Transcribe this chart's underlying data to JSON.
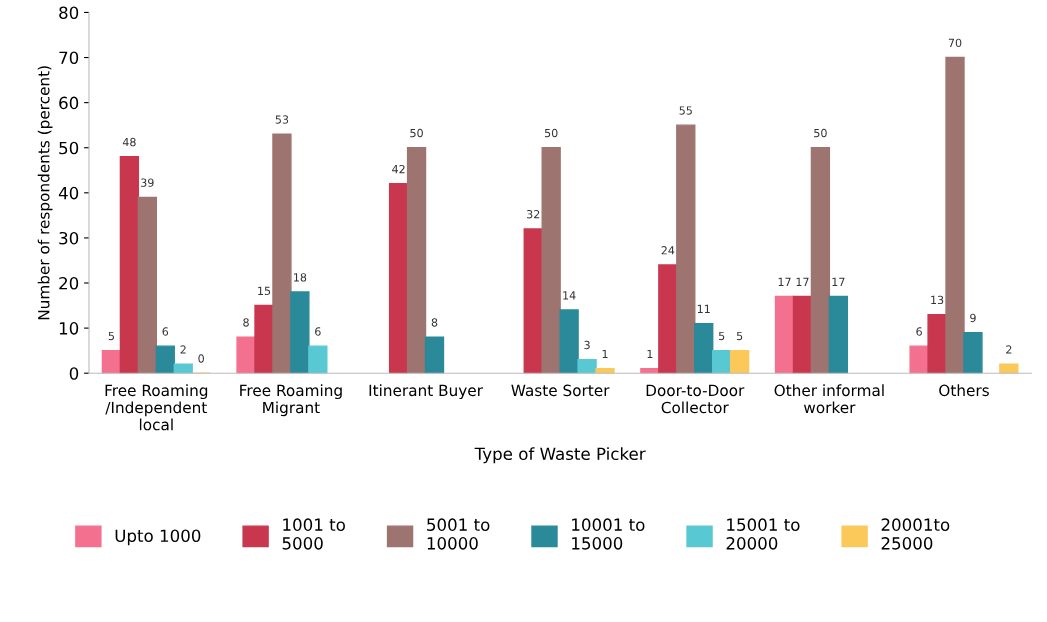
{
  "chart_data": {
    "type": "bar",
    "xlabel": "Type of Waste Picker",
    "ylabel": "Number of respondents (percent)",
    "categories": [
      "Free Roaming\n/Independent\nlocal",
      "Free Roaming\nMigrant",
      "Itinerant Buyer",
      "Waste Sorter",
      "Door-to-Door\nCollector",
      "Other informal\nworker",
      "Others"
    ],
    "series": [
      {
        "name": "Upto 1000",
        "color": "#f4708f",
        "values": [
          5,
          8,
          null,
          null,
          1,
          17,
          6
        ]
      },
      {
        "name": "1001 to\n5000",
        "color": "#c9374f",
        "values": [
          48,
          15,
          42,
          32,
          24,
          17,
          13
        ]
      },
      {
        "name": "5001 to\n10000",
        "color": "#9e7470",
        "values": [
          39,
          53,
          50,
          50,
          55,
          50,
          70
        ]
      },
      {
        "name": "10001 to\n15000",
        "color": "#2a8a99",
        "values": [
          6,
          18,
          8,
          14,
          11,
          17,
          9
        ]
      },
      {
        "name": "15001 to\n20000",
        "color": "#58c8d3",
        "values": [
          2,
          6,
          null,
          3,
          5,
          null,
          null
        ]
      },
      {
        "name": "20001to\n25000",
        "color": "#fbc85a",
        "values": [
          0,
          null,
          null,
          1,
          5,
          null,
          2
        ]
      }
    ],
    "ylim": [
      0,
      80
    ],
    "yticks": [
      0,
      10,
      20,
      30,
      40,
      50,
      60,
      70,
      80
    ],
    "data_labels": true,
    "grid": false,
    "legend": "bottom"
  }
}
